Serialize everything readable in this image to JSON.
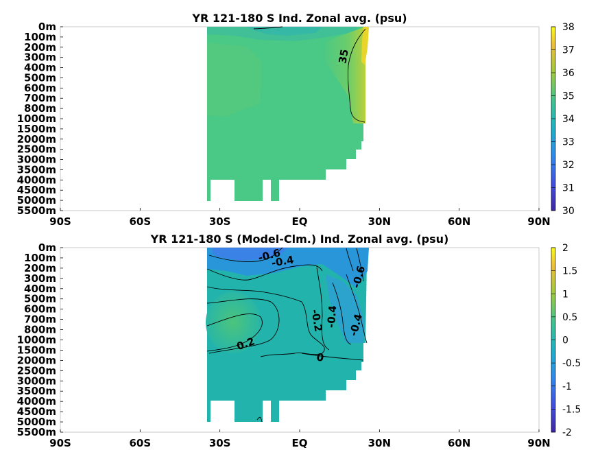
{
  "chart_data": [
    {
      "type": "heatmap",
      "title": "YR 121-180 S Ind. Zonal avg. (psu)",
      "xlabel": "",
      "ylabel": "",
      "x_ticks": [
        "90S",
        "60S",
        "30S",
        "EQ",
        "30N",
        "60N",
        "90N"
      ],
      "x_values": [
        -90,
        -60,
        -30,
        0,
        30,
        60,
        90
      ],
      "xlim": [
        -90,
        90
      ],
      "y_ticks": [
        "0m",
        "100m",
        "200m",
        "300m",
        "400m",
        "500m",
        "600m",
        "700m",
        "800m",
        "1000m",
        "1500m",
        "2000m",
        "2500m",
        "3000m",
        "3500m",
        "4000m",
        "4500m",
        "5000m",
        "5500m"
      ],
      "colorbar": {
        "ticks": [
          "30",
          "31",
          "32",
          "33",
          "34",
          "35",
          "36",
          "37",
          "38"
        ],
        "range": [
          30,
          38
        ]
      },
      "contour_labels": [
        "35"
      ],
      "data_lat_range": [
        -35,
        25
      ],
      "dominant_value": 34.7,
      "colors": {
        "base": "#4ac886",
        "mid": "#3fbf8e",
        "high": "#8fd34a",
        "top": "#ecd12a"
      }
    },
    {
      "type": "heatmap",
      "title": "YR 121-180 S (Model-Clm.) Ind. Zonal avg. (psu)",
      "xlabel": "",
      "ylabel": "",
      "x_ticks": [
        "90S",
        "60S",
        "30S",
        "EQ",
        "30N",
        "60N",
        "90N"
      ],
      "x_values": [
        -90,
        -60,
        -30,
        0,
        30,
        60,
        90
      ],
      "xlim": [
        -90,
        90
      ],
      "y_ticks": [
        "0m",
        "100m",
        "200m",
        "300m",
        "400m",
        "500m",
        "600m",
        "700m",
        "800m",
        "1000m",
        "1500m",
        "2000m",
        "2500m",
        "3000m",
        "3500m",
        "4000m",
        "4500m",
        "5000m",
        "5500m"
      ],
      "colorbar": {
        "ticks": [
          "2",
          "1.5",
          "1",
          "0.5",
          "0",
          "-0.5",
          "-1",
          "-1.5",
          "-2"
        ],
        "range": [
          -2,
          2
        ]
      },
      "contour_labels": [
        "-0.6",
        "-0.4",
        "-0.6",
        "-0.4",
        "-0.2",
        "-0.4",
        "0.2",
        "0"
      ],
      "data_lat_range": [
        -35,
        25
      ],
      "dominant_value": 0,
      "colors": {
        "base": "#22b4ac",
        "low": "#2a9ad7",
        "lower": "#3a7fe6",
        "high": "#45c384"
      }
    }
  ]
}
